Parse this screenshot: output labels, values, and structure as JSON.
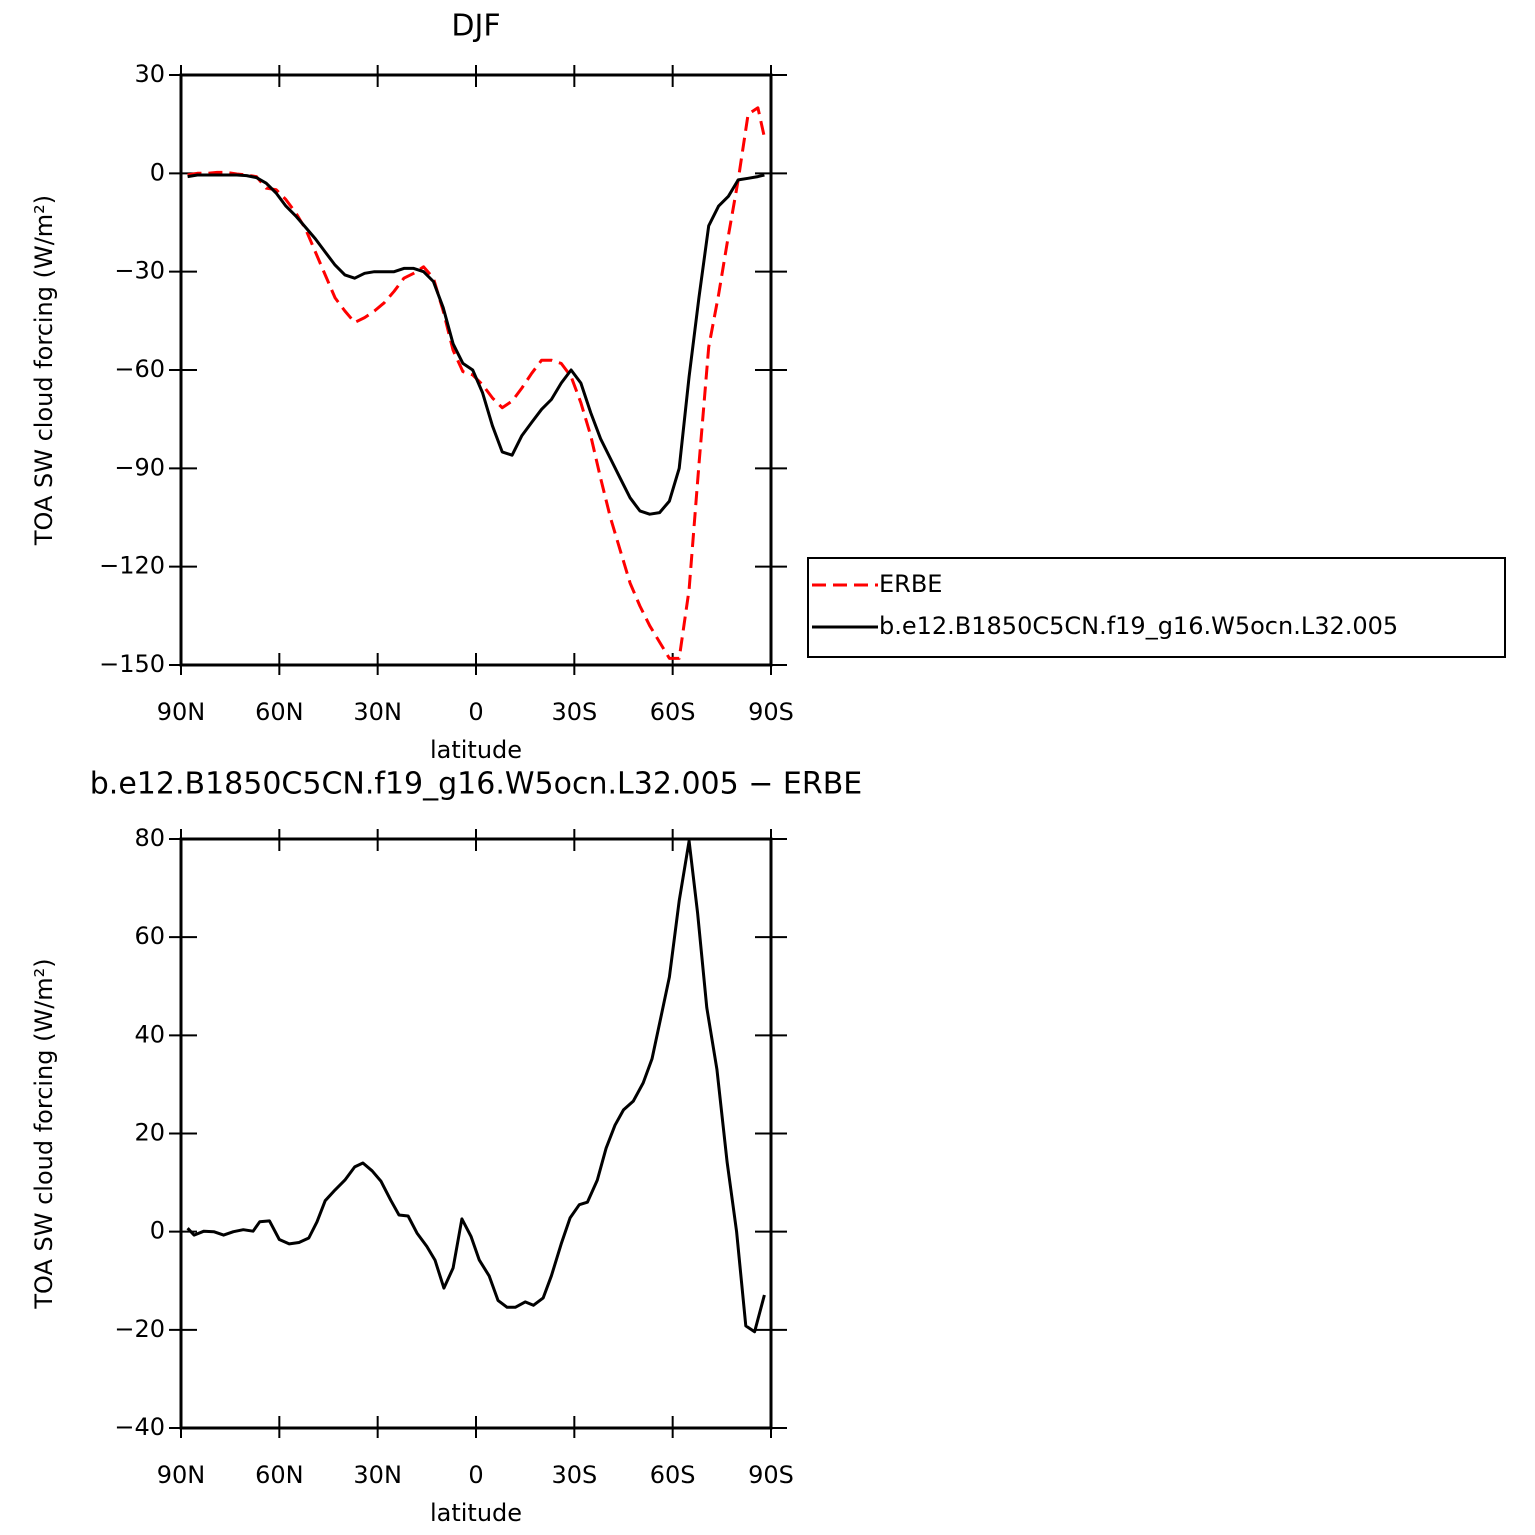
{
  "chart_data": [
    {
      "type": "line",
      "title": "DJF",
      "xlabel": "latitude",
      "ylabel": "TOA SW cloud forcing (W/m²)",
      "xlim": [
        90,
        -90
      ],
      "ylim": [
        30,
        -150
      ],
      "xticks": [
        {
          "value": 90,
          "label": "90N"
        },
        {
          "value": 60,
          "label": "60N"
        },
        {
          "value": 30,
          "label": "30N"
        },
        0,
        {
          "value": -30,
          "label": "30S"
        },
        {
          "value": -60,
          "label": "60S"
        },
        {
          "value": -90,
          "label": "90S"
        }
      ],
      "yticks": [
        30,
        0,
        {
          "value": -30,
          "label": "−30"
        },
        {
          "value": -60,
          "label": "−60"
        },
        {
          "value": -90,
          "label": "−90"
        },
        {
          "value": -120,
          "label": "−120"
        },
        {
          "value": -150,
          "label": "−150"
        }
      ],
      "legend": "right",
      "x": [
        88,
        85,
        82,
        79,
        76,
        73,
        70,
        67,
        64,
        61,
        58,
        55,
        52,
        49,
        46,
        43,
        40,
        37,
        34,
        31,
        28,
        25,
        22,
        19,
        16,
        13,
        10,
        7,
        4,
        1,
        -2,
        -5,
        -8,
        -11,
        -14,
        -17,
        -20,
        -23,
        -26,
        -29,
        -32,
        -35,
        -38,
        -41,
        -44,
        -47,
        -50,
        -53,
        -56,
        -59,
        -62,
        -65,
        -68,
        -71,
        -74,
        -77,
        -80,
        -83,
        -86,
        -88
      ],
      "series": [
        {
          "name": "ERBE",
          "color": "#ff0000",
          "style": "dashed",
          "values": [
            -0.5,
            0,
            0,
            0.3,
            0.3,
            -0.2,
            -0.5,
            -1,
            -4.5,
            -5,
            -8,
            -12,
            -17,
            -24,
            -31,
            -38,
            -42,
            -45.5,
            -44,
            -42,
            -39.5,
            -36,
            -32,
            -30.5,
            -28.5,
            -32,
            -42,
            -54,
            -60.5,
            -61.5,
            -64.5,
            -68.5,
            -71.5,
            -69.5,
            -65.5,
            -61,
            -57,
            -57,
            -58,
            -62,
            -70,
            -80,
            -93,
            -105,
            -115,
            -125,
            -132,
            -138,
            -143,
            -148,
            -148,
            -127,
            -89,
            -53,
            -37,
            -19,
            -2,
            18,
            20,
            11
          ]
        },
        {
          "name": "b.e12.B1850C5CN.f19_g16.W5ocn.L32.005",
          "color": "#000000",
          "style": "solid",
          "values": [
            -1,
            -0.5,
            -0.5,
            -0.5,
            -0.5,
            -0.5,
            -0.7,
            -1.3,
            -3,
            -6,
            -10,
            -13,
            -16.5,
            -20,
            -24,
            -28,
            -31,
            -32,
            -30.5,
            -30,
            -30,
            -30,
            -29,
            -29,
            -30,
            -33,
            -41,
            -52,
            -58,
            -60,
            -67,
            -77,
            -85,
            -86,
            -80,
            -76,
            -72,
            -69,
            -64,
            -60,
            -64,
            -73,
            -81,
            -87,
            -93,
            -99,
            -103,
            -104,
            -103.5,
            -100,
            -90,
            -62,
            -38,
            -16,
            -10,
            -7,
            -2,
            -1.5,
            -1,
            -0.5
          ]
        }
      ]
    },
    {
      "type": "line",
      "title": "b.e12.B1850C5CN.f19_g16.W5ocn.L32.005 − ERBE",
      "xlabel": "latitude",
      "ylabel": "TOA SW cloud forcing (W/m²)",
      "xlim": [
        90,
        -90
      ],
      "ylim": [
        80,
        -40
      ],
      "xticks": [
        {
          "value": 90,
          "label": "90N"
        },
        {
          "value": 60,
          "label": "60N"
        },
        {
          "value": 30,
          "label": "30N"
        },
        0,
        {
          "value": -30,
          "label": "30S"
        },
        {
          "value": -60,
          "label": "60S"
        },
        {
          "value": -90,
          "label": "90S"
        }
      ],
      "yticks": [
        80,
        60,
        40,
        20,
        0,
        {
          "value": -20,
          "label": "−20"
        },
        {
          "value": -40,
          "label": "−40"
        }
      ],
      "x": [
        88,
        86,
        83,
        80,
        77,
        74,
        71,
        68,
        66,
        63,
        60,
        57,
        54,
        51,
        48.5,
        46,
        43,
        40,
        37,
        34.5,
        31.7,
        29,
        26,
        23.5,
        20.7,
        18,
        15,
        12.5,
        9.8,
        7,
        4.3,
        1.5,
        -1,
        -4,
        -6.7,
        -9.5,
        -12,
        -15,
        -17.5,
        -20.5,
        -23,
        -26,
        -28.7,
        -31.5,
        -34,
        -37,
        -39.7,
        -42.4,
        -45,
        -48,
        -51,
        -53.7,
        -56.4,
        -59,
        -62,
        -65,
        -67.6,
        -70.4,
        -73.5,
        -76.6,
        -79.5,
        -82.3,
        -85,
        -88
      ],
      "series": [
        {
          "color": "#000000",
          "style": "solid",
          "values": [
            0.7,
            -0.7,
            0.1,
            0,
            -0.7,
            0,
            0.4,
            0.1,
            2,
            2.2,
            -1.6,
            -2.5,
            -2.2,
            -1.3,
            2,
            6.3,
            8.5,
            10.5,
            13.2,
            14,
            12.4,
            10.3,
            6.4,
            3.4,
            3.2,
            -0.3,
            -3,
            -5.8,
            -11.5,
            -7.4,
            2.6,
            -1,
            -5.8,
            -9,
            -14,
            -15.4,
            -15.4,
            -14.3,
            -15,
            -13.5,
            -9,
            -2.5,
            2.8,
            5.5,
            6,
            10.5,
            17,
            21.7,
            24.8,
            26.6,
            30.3,
            35.2,
            43.7,
            51.9,
            67.4,
            79.6,
            64.9,
            45.6,
            33.1,
            14.2,
            0,
            -19.2,
            -20.4,
            -12.9
          ]
        }
      ]
    }
  ]
}
